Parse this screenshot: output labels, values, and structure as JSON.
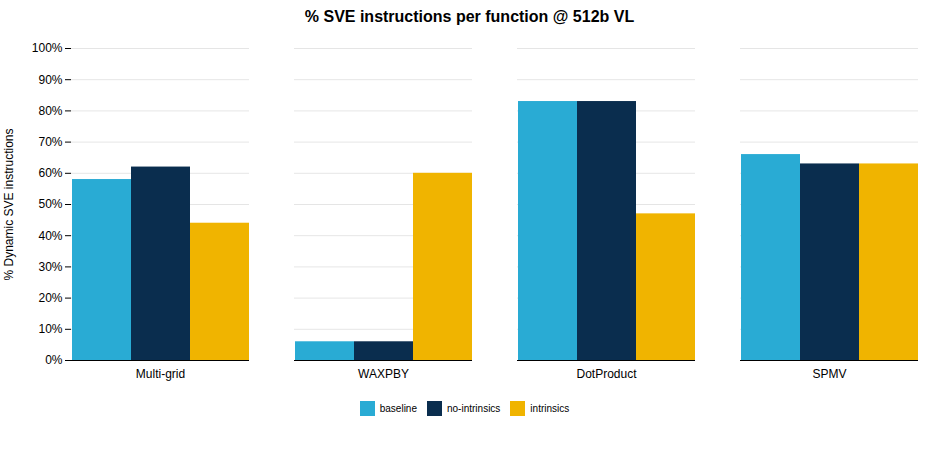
{
  "chart_data": {
    "type": "bar",
    "title": "% SVE instructions per function @ 512b VL",
    "ylabel": "% Dynamic SVE instructions",
    "categories": [
      "Multi-grid",
      "WAXPBY",
      "DotProduct",
      "SPMV"
    ],
    "series": [
      {
        "name": "baseline",
        "color": "#29ABD4",
        "values": [
          0.58,
          0.06,
          0.83,
          0.66
        ]
      },
      {
        "name": "no-intrinsics",
        "color": "#0A2D4E",
        "values": [
          0.62,
          0.06,
          0.83,
          0.63
        ]
      },
      {
        "name": "intrinsics",
        "color": "#F0B400",
        "values": [
          0.44,
          0.6,
          0.47,
          0.63
        ]
      }
    ],
    "ylim": [
      0,
      1.0
    ],
    "yticks": [
      {
        "value": 0.0,
        "label": "0%"
      },
      {
        "value": 0.1,
        "label": "10%"
      },
      {
        "value": 0.2,
        "label": "20%"
      },
      {
        "value": 0.3,
        "label": "30%"
      },
      {
        "value": 0.4,
        "label": "40%"
      },
      {
        "value": 0.5,
        "label": "50%"
      },
      {
        "value": 0.6,
        "label": "60%"
      },
      {
        "value": 0.7,
        "label": "70%"
      },
      {
        "value": 0.8,
        "label": "80%"
      },
      {
        "value": 0.9,
        "label": "90%"
      },
      {
        "value": 1.0,
        "label": "100%"
      }
    ],
    "grid": true,
    "legend": "bottom"
  }
}
